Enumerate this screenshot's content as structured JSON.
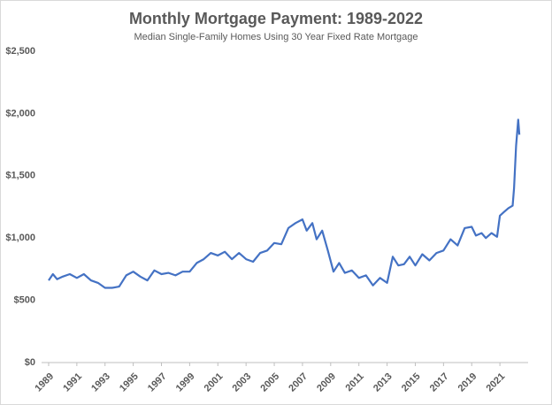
{
  "chart_data": {
    "type": "line",
    "title": "Monthly Mortgage Payment: 1989-2022",
    "subtitle": "Median Single-Family Homes Using 30 Year Fixed Rate Mortgage",
    "x": [
      1989.0,
      1989.3,
      1989.6,
      1990.0,
      1990.5,
      1991.0,
      1991.5,
      1992.0,
      1992.5,
      1993.0,
      1993.5,
      1994.0,
      1994.5,
      1995.0,
      1995.5,
      1996.0,
      1996.5,
      1997.0,
      1997.5,
      1998.0,
      1998.5,
      1999.0,
      1999.5,
      2000.0,
      2000.5,
      2001.0,
      2001.5,
      2002.0,
      2002.5,
      2003.0,
      2003.5,
      2004.0,
      2004.5,
      2005.0,
      2005.5,
      2006.0,
      2006.5,
      2007.0,
      2007.3,
      2007.7,
      2008.0,
      2008.4,
      2008.8,
      2009.2,
      2009.6,
      2010.0,
      2010.5,
      2011.0,
      2011.5,
      2012.0,
      2012.5,
      2013.0,
      2013.4,
      2013.8,
      2014.2,
      2014.6,
      2015.0,
      2015.5,
      2016.0,
      2016.5,
      2017.0,
      2017.5,
      2018.0,
      2018.5,
      2019.0,
      2019.3,
      2019.7,
      2020.0,
      2020.4,
      2020.8,
      2021.0,
      2021.3,
      2021.6,
      2021.9,
      2022.0,
      2022.15,
      2022.3,
      2022.38
    ],
    "series": [
      {
        "name": "Monthly Mortgage Payment",
        "color": "#4472c4",
        "values": [
          660,
          710,
          670,
          690,
          710,
          680,
          710,
          660,
          640,
          600,
          600,
          610,
          700,
          730,
          690,
          660,
          740,
          710,
          720,
          700,
          730,
          730,
          800,
          830,
          880,
          860,
          890,
          830,
          880,
          830,
          810,
          880,
          900,
          960,
          950,
          1080,
          1120,
          1150,
          1060,
          1120,
          990,
          1060,
          900,
          730,
          800,
          720,
          740,
          680,
          700,
          620,
          680,
          640,
          850,
          780,
          790,
          850,
          780,
          870,
          820,
          880,
          900,
          990,
          940,
          1080,
          1090,
          1020,
          1040,
          1000,
          1040,
          1010,
          1180,
          1210,
          1240,
          1260,
          1400,
          1740,
          1950,
          1830
        ]
      }
    ],
    "xlim": [
      1988.5,
      2023
    ],
    "xticks": [
      1989,
      1991,
      1993,
      1995,
      1997,
      1999,
      2001,
      2003,
      2005,
      2007,
      2009,
      2011,
      2013,
      2015,
      2017,
      2019,
      2021
    ],
    "ylim": [
      0,
      2500
    ],
    "yticks": [
      {
        "value": 0,
        "label": "$0"
      },
      {
        "value": 500,
        "label": "$500"
      },
      {
        "value": 1000,
        "label": "$1,000"
      },
      {
        "value": 1500,
        "label": "$1,500"
      },
      {
        "value": 2000,
        "label": "$2,000"
      },
      {
        "value": 2500,
        "label": "$2,500"
      }
    ],
    "grid": false
  }
}
